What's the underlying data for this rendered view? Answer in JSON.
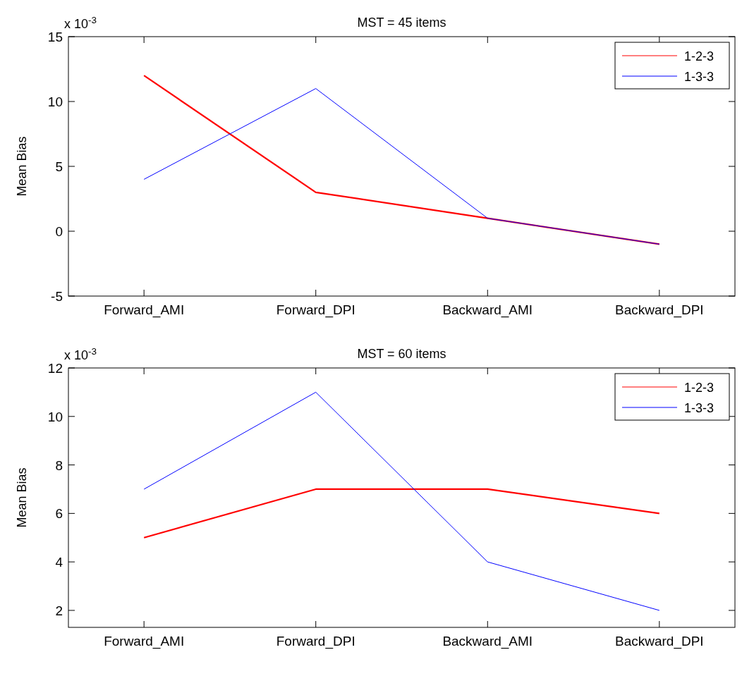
{
  "chart_data": [
    {
      "type": "line",
      "title": "MST = 45 items",
      "ylabel": "Mean Bias",
      "categories": [
        "Forward_AMI",
        "Forward_DPI",
        "Backward_AMI",
        "Backward_DPI"
      ],
      "series": [
        {
          "name": "1-2-3",
          "color": "#ff0000",
          "values": [
            12,
            3,
            1,
            -1
          ]
        },
        {
          "name": "1-3-3",
          "color": "#0000ff",
          "values": [
            4,
            11,
            1,
            -1
          ]
        }
      ],
      "ylim": [
        -5,
        15
      ],
      "yticks": [
        -5,
        0,
        5,
        10,
        15
      ],
      "annotations": [
        "x 10$^{-3}$"
      ],
      "legend": "top right",
      "grid": false
    },
    {
      "type": "line",
      "title": "MST = 60 items",
      "ylabel": "Mean Bias",
      "categories": [
        "Forward_AMI",
        "Forward_DPI",
        "Backward_AMI",
        "Backward_DPI"
      ],
      "series": [
        {
          "name": "1-2-3",
          "color": "#ff0000",
          "values": [
            5,
            7,
            7,
            6
          ]
        },
        {
          "name": "1-3-3",
          "color": "#0000ff",
          "values": [
            7,
            11,
            4,
            2
          ]
        }
      ],
      "ylim": [
        1.3,
        12
      ],
      "yticks": [
        2,
        4,
        6,
        8,
        10,
        12
      ],
      "annotations": [
        "x 10$^{-3}$"
      ],
      "legend": "top right",
      "grid": false
    }
  ]
}
